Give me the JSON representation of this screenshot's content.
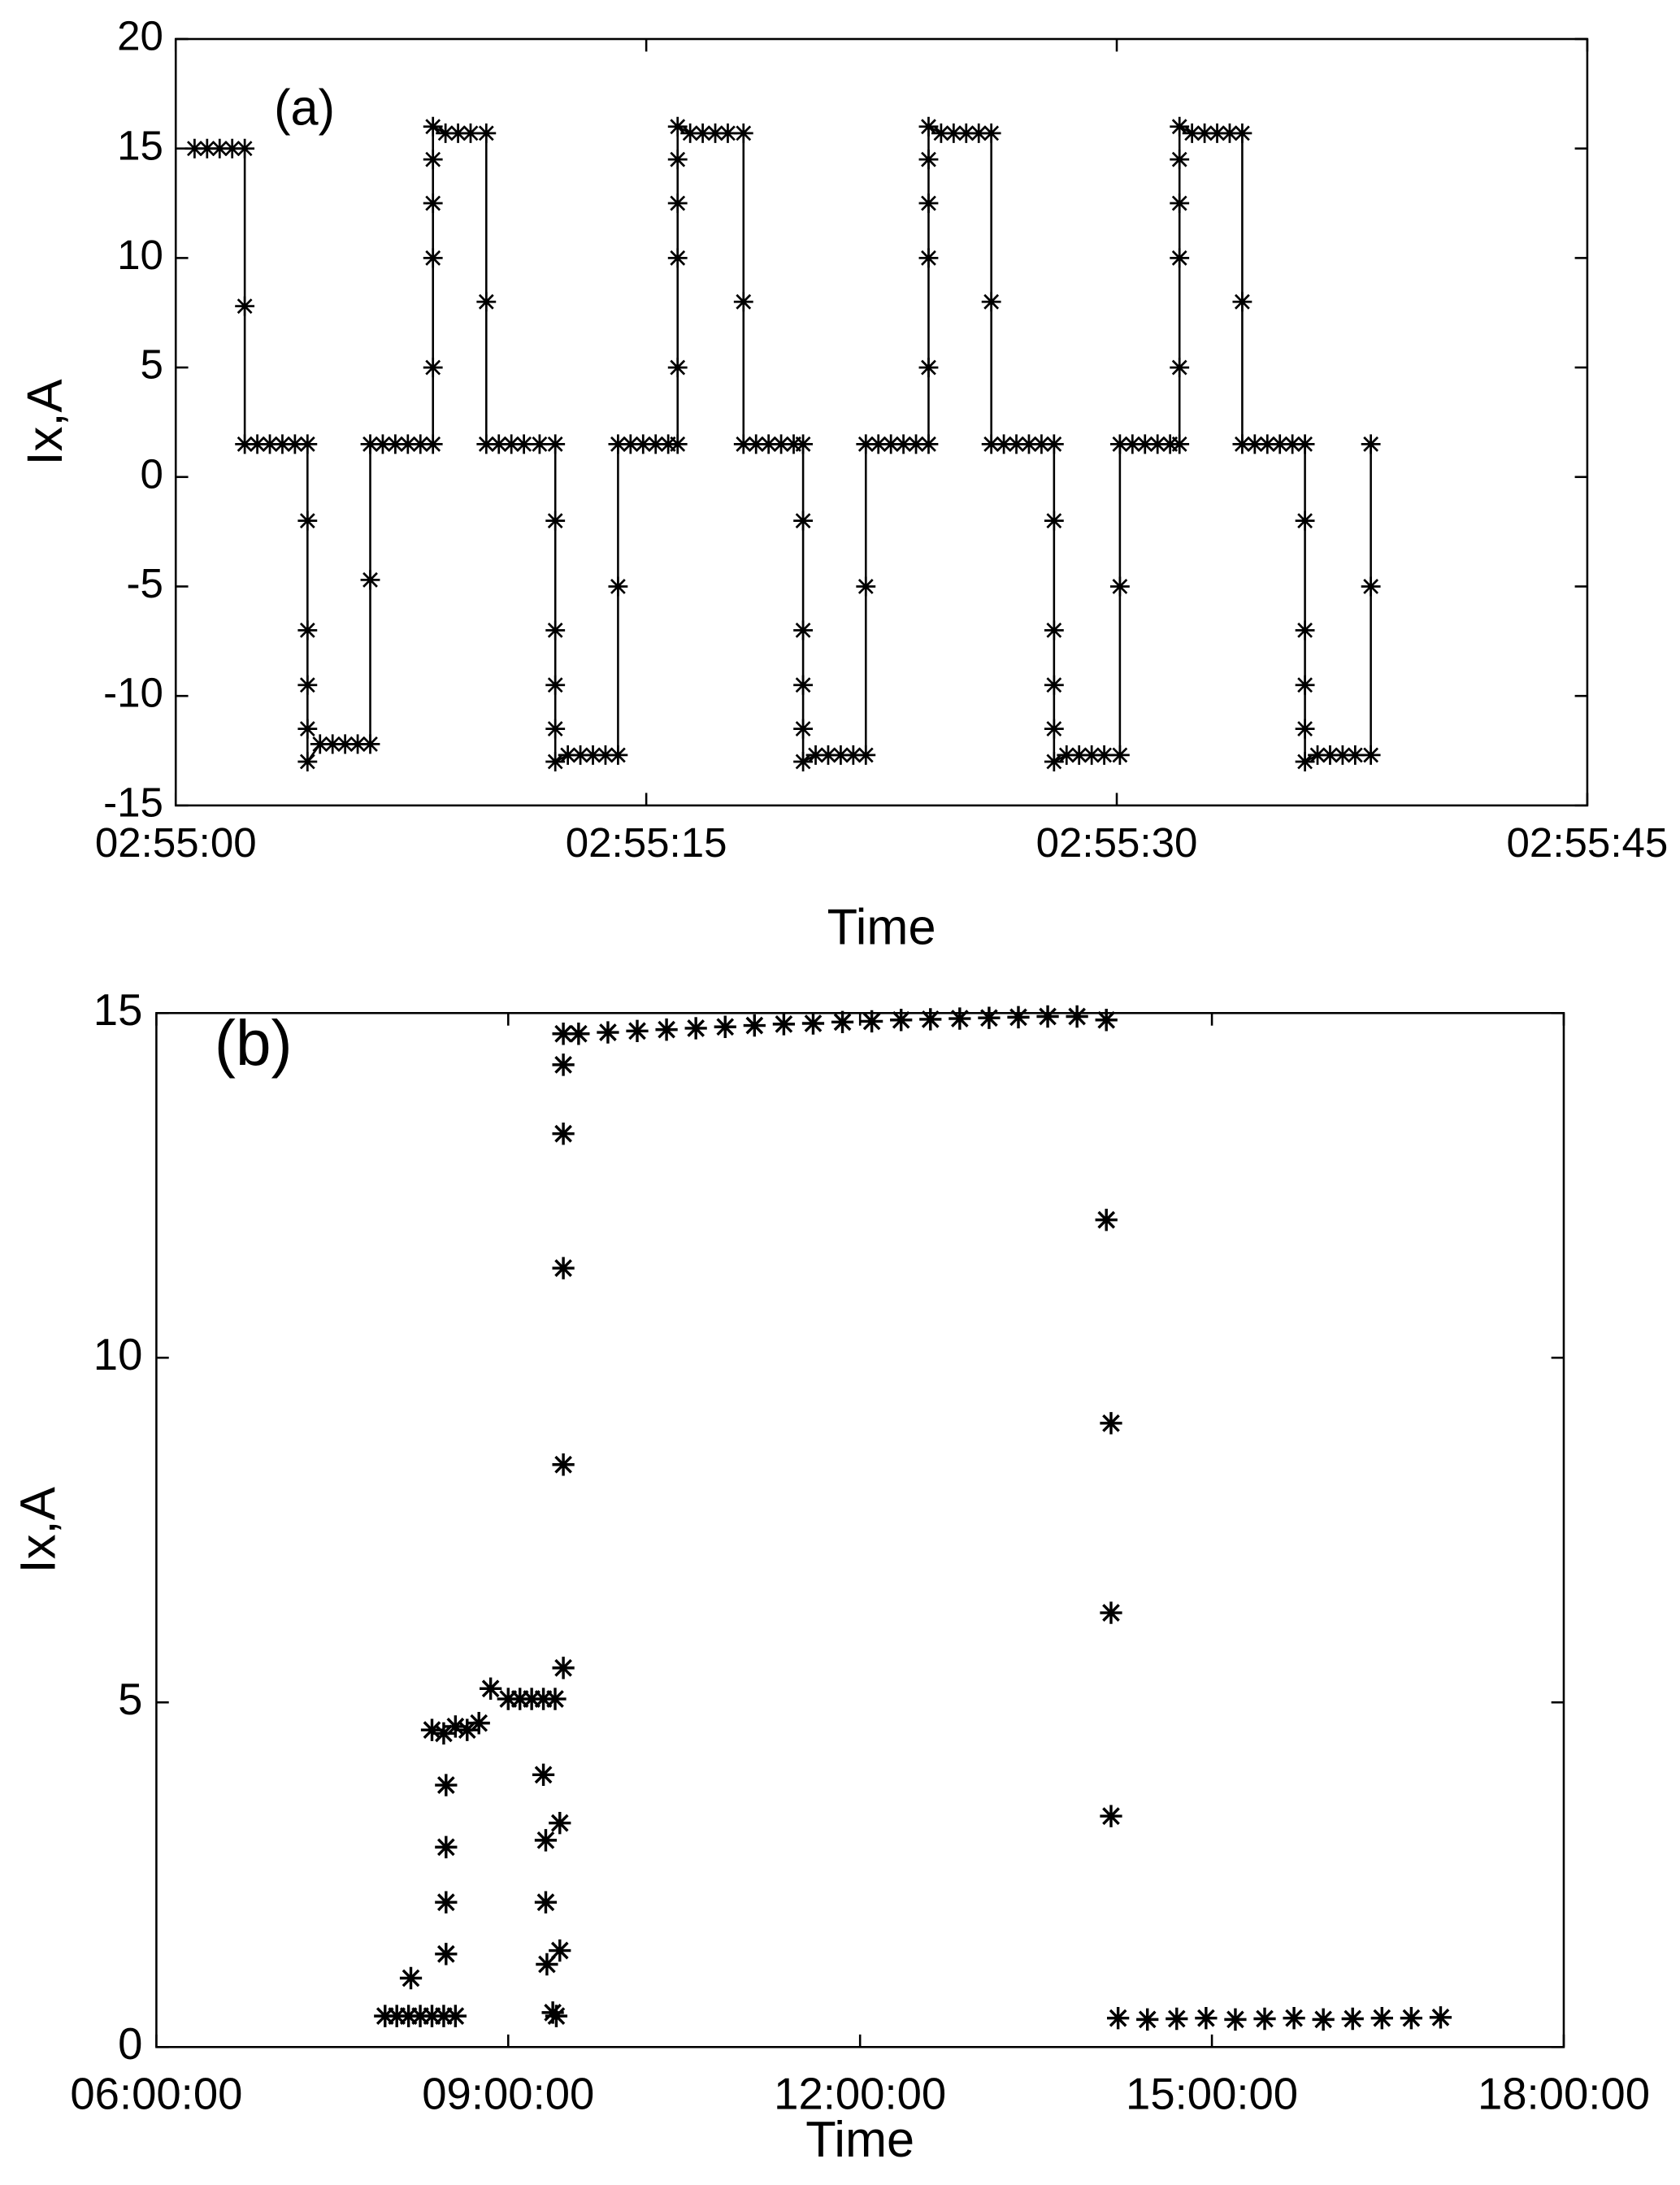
{
  "chart_data": [
    {
      "type": "line",
      "marker": "asterisk",
      "color": "#000000",
      "annotation": "(a)",
      "xlabel": "Time",
      "ylabel": "Ix,A",
      "xlim": [
        0,
        45
      ],
      "xticks": [
        {
          "value": 0,
          "label": "02:55:00"
        },
        {
          "value": 15,
          "label": "02:55:15"
        },
        {
          "value": 30,
          "label": "02:55:30"
        },
        {
          "value": 45,
          "label": "02:55:45"
        }
      ],
      "ylim": [
        -15,
        20
      ],
      "yticks": [
        -15,
        -10,
        -5,
        0,
        5,
        10,
        15,
        20
      ],
      "x": [
        0.6,
        1.0,
        1.4,
        1.8,
        2.2,
        2.2,
        2.2,
        2.6,
        3.0,
        3.4,
        3.8,
        4.2,
        4.2,
        4.2,
        4.2,
        4.2,
        4.2,
        4.6,
        5.0,
        5.4,
        5.8,
        6.2,
        6.2,
        6.2,
        6.6,
        7.0,
        7.4,
        7.8,
        8.2,
        8.2,
        8.2,
        8.2,
        8.2,
        8.2,
        8.6,
        9.0,
        9.4,
        9.9,
        9.9,
        9.9,
        10.3,
        10.7,
        11.1,
        11.6,
        12.1,
        12.1,
        12.1,
        12.1,
        12.1,
        12.1,
        12.5,
        12.9,
        13.3,
        13.7,
        14.1,
        14.1,
        14.1,
        14.5,
        14.9,
        15.3,
        15.7,
        16.0,
        16.0,
        16.0,
        16.0,
        16.0,
        16.0,
        16.4,
        16.8,
        17.2,
        17.6,
        18.1,
        18.1,
        18.1,
        18.5,
        18.9,
        19.3,
        19.7,
        20.0,
        20.0,
        20.0,
        20.0,
        20.0,
        20.0,
        20.4,
        20.8,
        21.2,
        21.6,
        22.0,
        22.0,
        22.0,
        22.4,
        22.8,
        23.2,
        23.6,
        24.0,
        24.0,
        24.0,
        24.0,
        24.0,
        24.0,
        24.4,
        24.8,
        25.2,
        25.6,
        26.0,
        26.0,
        26.0,
        26.4,
        26.8,
        27.2,
        27.6,
        28.0,
        28.0,
        28.0,
        28.0,
        28.0,
        28.0,
        28.4,
        28.8,
        29.2,
        29.6,
        30.1,
        30.1,
        30.1,
        30.5,
        30.9,
        31.3,
        31.7,
        32.0,
        32.0,
        32.0,
        32.0,
        32.0,
        32.0,
        32.4,
        32.8,
        33.2,
        33.6,
        34.0,
        34.0,
        34.0,
        34.4,
        34.8,
        35.2,
        35.6,
        36.0,
        36.0,
        36.0,
        36.0,
        36.0,
        36.0,
        36.4,
        36.8,
        37.2,
        37.6,
        38.1,
        38.1,
        38.1
      ],
      "y": [
        15,
        15,
        15,
        15,
        15,
        7.8,
        1.5,
        1.5,
        1.5,
        1.5,
        1.5,
        1.5,
        -2,
        -7,
        -9.5,
        -11.5,
        -13,
        -12.2,
        -12.2,
        -12.2,
        -12.2,
        -12.2,
        -4.7,
        1.5,
        1.5,
        1.5,
        1.5,
        1.5,
        1.5,
        5,
        10,
        12.5,
        14.5,
        16,
        15.7,
        15.7,
        15.7,
        15.7,
        8,
        1.5,
        1.5,
        1.5,
        1.5,
        1.5,
        1.5,
        -2,
        -7,
        -9.5,
        -11.5,
        -13,
        -12.7,
        -12.7,
        -12.7,
        -12.7,
        -12.7,
        -5,
        1.5,
        1.5,
        1.5,
        1.5,
        1.5,
        1.5,
        5,
        10,
        12.5,
        14.5,
        16,
        15.7,
        15.7,
        15.7,
        15.7,
        15.7,
        8,
        1.5,
        1.5,
        1.5,
        1.5,
        1.5,
        1.5,
        -2,
        -7,
        -9.5,
        -11.5,
        -13,
        -12.7,
        -12.7,
        -12.7,
        -12.7,
        -12.7,
        -5,
        1.5,
        1.5,
        1.5,
        1.5,
        1.5,
        1.5,
        5,
        10,
        12.5,
        14.5,
        16,
        15.7,
        15.7,
        15.7,
        15.7,
        15.7,
        8,
        1.5,
        1.5,
        1.5,
        1.5,
        1.5,
        1.5,
        -2,
        -7,
        -9.5,
        -11.5,
        -13,
        -12.7,
        -12.7,
        -12.7,
        -12.7,
        -12.7,
        -5,
        1.5,
        1.5,
        1.5,
        1.5,
        1.5,
        1.5,
        5,
        10,
        12.5,
        14.5,
        16,
        15.7,
        15.7,
        15.7,
        15.7,
        15.7,
        8,
        1.5,
        1.5,
        1.5,
        1.5,
        1.5,
        1.5,
        -2,
        -7,
        -9.5,
        -11.5,
        -13,
        -12.7,
        -12.7,
        -12.7,
        -12.7,
        -12.7,
        -5,
        1.5
      ]
    },
    {
      "type": "scatter",
      "marker": "asterisk",
      "color": "#000000",
      "annotation": "(b)",
      "xlabel": "Time",
      "ylabel": "Ix,A",
      "xlim": [
        6,
        18
      ],
      "xticks": [
        {
          "value": 6,
          "label": "06:00:00"
        },
        {
          "value": 9,
          "label": "09:00:00"
        },
        {
          "value": 12,
          "label": "12:00:00"
        },
        {
          "value": 15,
          "label": "15:00:00"
        },
        {
          "value": 18,
          "label": "18:00:00"
        }
      ],
      "ylim": [
        0,
        15
      ],
      "yticks": [
        0,
        5,
        10,
        15
      ],
      "x": [
        7.95,
        8.05,
        8.15,
        8.25,
        8.35,
        8.45,
        8.55,
        8.17,
        8.47,
        8.47,
        8.47,
        8.47,
        8.35,
        8.45,
        8.55,
        8.65,
        8.75,
        8.85,
        9.0,
        9.1,
        9.2,
        9.3,
        9.4,
        9.3,
        9.32,
        9.32,
        9.33,
        9.38,
        9.41,
        9.44,
        9.44,
        9.47,
        9.47,
        9.47,
        9.47,
        9.47,
        9.47,
        9.6,
        9.85,
        10.1,
        10.35,
        10.6,
        10.85,
        11.1,
        11.35,
        11.6,
        11.85,
        12.1,
        12.35,
        12.6,
        12.85,
        13.1,
        13.35,
        13.6,
        13.85,
        14.1,
        14.1,
        14.14,
        14.14,
        14.14,
        14.2,
        14.45,
        14.7,
        14.95,
        15.2,
        15.45,
        15.7,
        15.95,
        16.2,
        16.45,
        16.7,
        16.95
      ],
      "y": [
        0.45,
        0.45,
        0.45,
        0.45,
        0.45,
        0.45,
        0.45,
        1.0,
        1.35,
        2.1,
        2.9,
        3.8,
        4.6,
        4.55,
        4.65,
        4.6,
        4.7,
        5.2,
        5.05,
        5.05,
        5.05,
        5.05,
        5.05,
        3.95,
        3.0,
        2.1,
        1.2,
        0.5,
        0.45,
        3.25,
        1.4,
        5.5,
        8.45,
        11.3,
        13.25,
        14.25,
        14.7,
        14.7,
        14.72,
        14.74,
        14.76,
        14.78,
        14.8,
        14.82,
        14.84,
        14.85,
        14.87,
        14.88,
        14.9,
        14.91,
        14.92,
        14.93,
        14.94,
        14.95,
        14.95,
        14.9,
        12.0,
        9.05,
        6.3,
        3.35,
        0.42,
        0.4,
        0.41,
        0.42,
        0.4,
        0.41,
        0.42,
        0.4,
        0.41,
        0.42,
        0.42,
        0.43
      ]
    }
  ]
}
